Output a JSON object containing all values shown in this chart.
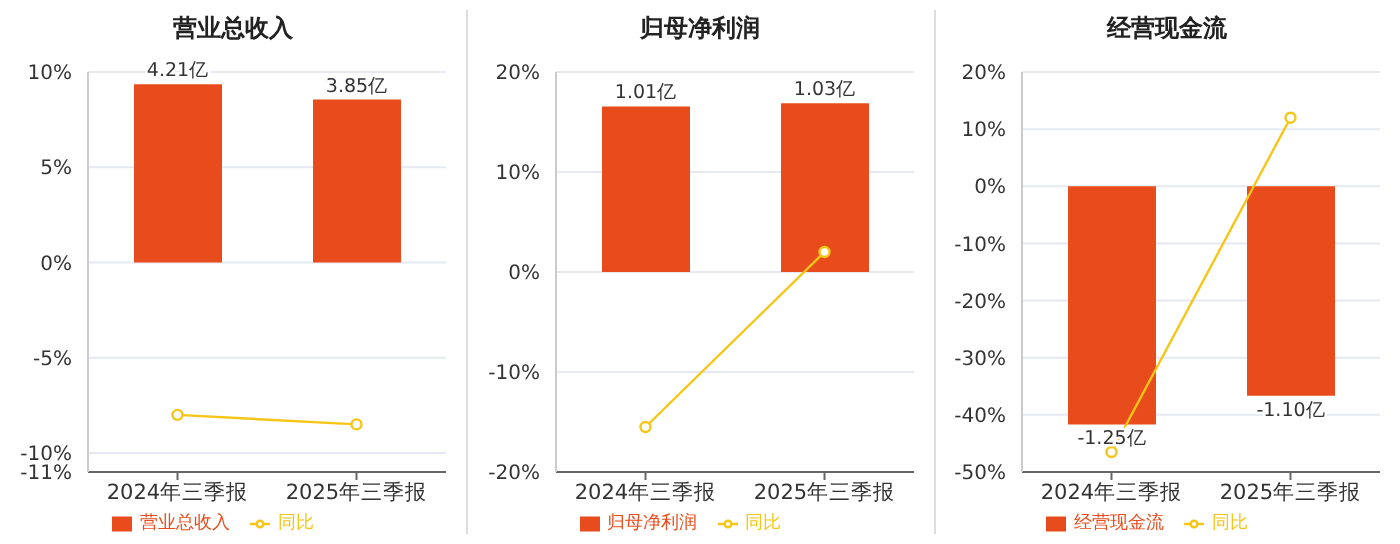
{
  "chart_data": [
    {
      "type": "bar",
      "title": "营业总收入",
      "categories": [
        "2024年三季报",
        "2025年三季报"
      ],
      "series": [
        {
          "name": "营业总收入",
          "color": "#e84c1c",
          "axis": "y2",
          "values": [
            4.21,
            3.85
          ],
          "value_labels": [
            "4.21亿",
            "3.85亿"
          ]
        },
        {
          "type": "line",
          "name": "同比",
          "color": "#f5c518",
          "values": [
            -8.0,
            -8.5
          ]
        }
      ],
      "ylim": [
        -11,
        10
      ],
      "yticks": [
        {
          "value": -11,
          "label": "-11%"
        },
        {
          "value": -10,
          "label": "-10%"
        },
        {
          "value": -5,
          "label": "-5%"
        },
        {
          "value": 0,
          "label": "0%"
        },
        {
          "value": 5,
          "label": "5%"
        },
        {
          "value": 10,
          "label": "10%"
        }
      ],
      "y2lim": [
        -4.95,
        4.5
      ],
      "grid": "y",
      "legend": "bottom",
      "marker": "circle"
    },
    {
      "type": "bar",
      "title": "归母净利润",
      "categories": [
        "2024年三季报",
        "2025年三季报"
      ],
      "series": [
        {
          "name": "归母净利润",
          "color": "#e84c1c",
          "axis": "y2",
          "values": [
            1.01,
            1.03
          ],
          "value_labels": [
            "1.01亿",
            "1.03亿"
          ]
        },
        {
          "type": "line",
          "name": "同比",
          "color": "#f5c518",
          "values": [
            -15.5,
            2.0
          ]
        }
      ],
      "ylim": [
        -20,
        20
      ],
      "yticks": [
        {
          "value": -20,
          "label": "-20%"
        },
        {
          "value": -10,
          "label": "-10%"
        },
        {
          "value": 0,
          "label": "0%"
        },
        {
          "value": 10,
          "label": "10%"
        },
        {
          "value": 20,
          "label": "20%"
        }
      ],
      "y2lim": [
        -1.22,
        1.22
      ],
      "grid": "y",
      "legend": "bottom",
      "marker": "circle"
    },
    {
      "type": "bar",
      "title": "经营现金流",
      "categories": [
        "2024年三季报",
        "2025年三季报"
      ],
      "series": [
        {
          "name": "经营现金流",
          "color": "#e84c1c",
          "axis": "y2",
          "values": [
            -1.25,
            -1.1
          ],
          "value_labels": [
            "-1.25亿",
            "-1.10亿"
          ]
        },
        {
          "type": "line",
          "name": "同比",
          "color": "#f5c518",
          "values": [
            -46.5,
            12.0
          ]
        }
      ],
      "ylim": [
        -50,
        20
      ],
      "yticks": [
        {
          "value": -50,
          "label": "-50%"
        },
        {
          "value": -40,
          "label": "-40%"
        },
        {
          "value": -30,
          "label": "-30%"
        },
        {
          "value": -20,
          "label": "-20%"
        },
        {
          "value": -10,
          "label": "-10%"
        },
        {
          "value": 0,
          "label": "0%"
        },
        {
          "value": 10,
          "label": "10%"
        },
        {
          "value": 20,
          "label": "20%"
        }
      ],
      "y2lim": [
        -1.5,
        0.6
      ],
      "grid": "y",
      "legend": "bottom",
      "marker": "circle"
    }
  ]
}
